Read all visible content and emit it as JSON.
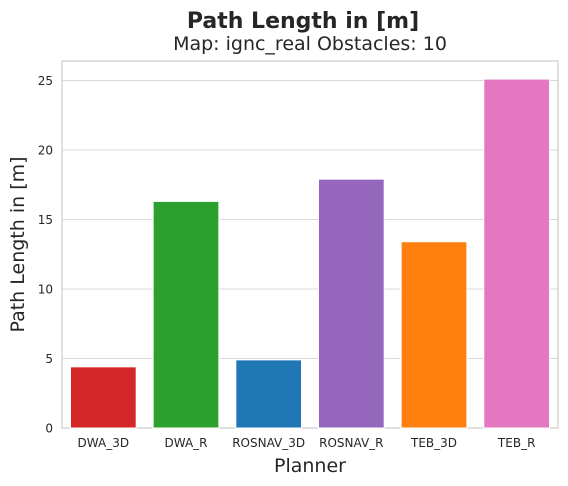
{
  "chart_data": {
    "type": "bar",
    "suptitle": "Path Length in [m]",
    "title": "Map: ignc_real Obstacles: 10",
    "xlabel": "Planner",
    "ylabel": "Path Length in [m]",
    "categories": [
      "DWA_3D",
      "DWA_R",
      "ROSNAV_3D",
      "ROSNAV_R",
      "TEB_3D",
      "TEB_R"
    ],
    "values": [
      4.4,
      16.3,
      4.9,
      17.9,
      13.4,
      25.1
    ],
    "colors": [
      "#d62728",
      "#2ca02c",
      "#1f77b4",
      "#9467bd",
      "#ff7f0e",
      "#e377c2"
    ],
    "ylim": [
      0,
      26.4
    ],
    "yticks": [
      0,
      5,
      10,
      15,
      20,
      25
    ],
    "grid": "horizontal",
    "legend": "none"
  }
}
